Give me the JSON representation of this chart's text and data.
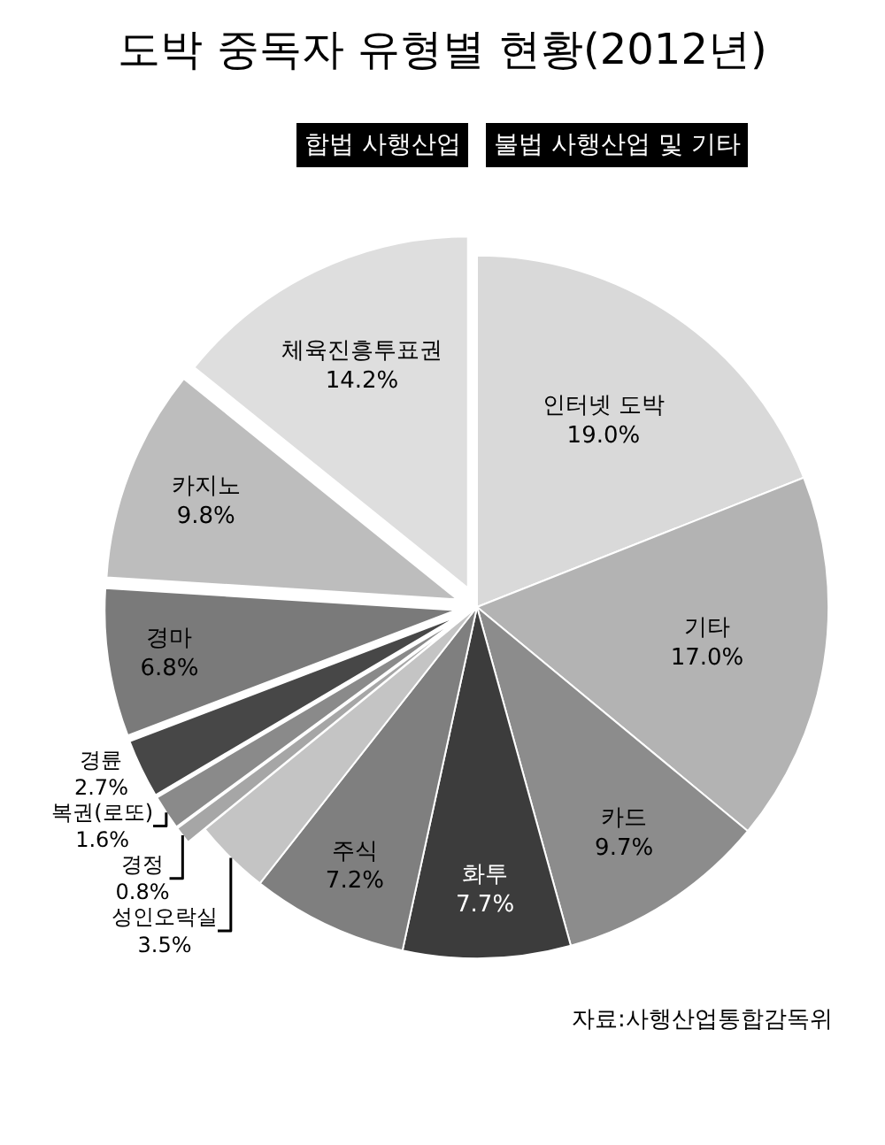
{
  "chart_data": {
    "type": "pie",
    "title": "도박 중독자 유형별 현황(2012년)",
    "categories": [
      "인터넷 도박",
      "기타",
      "카드",
      "화투",
      "주식",
      "성인오락실",
      "경정",
      "복권(로또)",
      "경륜",
      "경마",
      "카지노",
      "체육진흥투표권"
    ],
    "values": [
      19.0,
      17.0,
      9.7,
      7.7,
      7.2,
      3.5,
      0.8,
      1.6,
      2.7,
      6.8,
      9.8,
      14.2
    ],
    "value_labels": [
      "19.0%",
      "17.0%",
      "9.7%",
      "7.7%",
      "7.2%",
      "3.5%",
      "0.8%",
      "1.6%",
      "2.7%",
      "6.8%",
      "9.8%",
      "14.2%"
    ],
    "colors": [
      "#d9d9d9",
      "#b3b3b3",
      "#8c8c8c",
      "#3c3c3c",
      "#7f7f7f",
      "#c4c4c4",
      "#a6a6a6",
      "#8a8a8a",
      "#474747",
      "#7a7a7a",
      "#bdbdbd",
      "#dedede"
    ],
    "annotations": [
      "합법 사행산업",
      "불법 사행산업 및 기타",
      "자료:사행산업통합감독위"
    ],
    "legend": false
  }
}
